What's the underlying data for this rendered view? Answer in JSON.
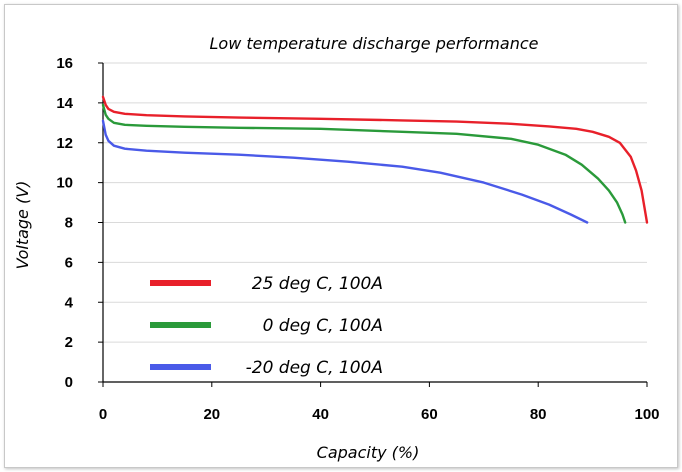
{
  "chart_data": {
    "type": "line",
    "title": "Low temperature discharge performance",
    "xlabel": "Capacity (%)",
    "ylabel": "Voltage (V)",
    "xlim": [
      0,
      100
    ],
    "ylim": [
      0,
      16
    ],
    "xticks": [
      0,
      20,
      40,
      60,
      80,
      100
    ],
    "yticks": [
      0,
      2,
      4,
      6,
      8,
      10,
      12,
      14,
      16
    ],
    "grid": "horizontal",
    "legend": "bottom-left",
    "series": [
      {
        "name": "25 deg C, 100A",
        "color": "#e8202a",
        "x": [
          0,
          0.5,
          1,
          2,
          4,
          8,
          15,
          25,
          40,
          55,
          65,
          75,
          82,
          87,
          90,
          93,
          95,
          97,
          98,
          99,
          99.5,
          100
        ],
        "y": [
          14.3,
          13.9,
          13.7,
          13.55,
          13.45,
          13.38,
          13.32,
          13.26,
          13.2,
          13.12,
          13.06,
          12.95,
          12.82,
          12.7,
          12.55,
          12.3,
          12.0,
          11.3,
          10.6,
          9.6,
          8.8,
          8.0
        ]
      },
      {
        "name": "0 deg C, 100A",
        "color": "#2a9a3a",
        "x": [
          0,
          0.5,
          1,
          2,
          4,
          8,
          15,
          25,
          40,
          55,
          65,
          75,
          80,
          85,
          88,
          91,
          93,
          94.5,
          95.5,
          96
        ],
        "y": [
          13.9,
          13.4,
          13.2,
          13.0,
          12.9,
          12.85,
          12.8,
          12.75,
          12.7,
          12.55,
          12.45,
          12.2,
          11.9,
          11.4,
          10.9,
          10.2,
          9.6,
          9.0,
          8.4,
          8.0
        ]
      },
      {
        "name": "-20 deg C, 100A",
        "color": "#4a5ae8",
        "x": [
          0,
          0.5,
          1,
          2,
          4,
          8,
          15,
          25,
          35,
          45,
          55,
          62,
          70,
          77,
          82,
          86,
          89
        ],
        "y": [
          13.1,
          12.4,
          12.1,
          11.85,
          11.7,
          11.6,
          11.5,
          11.4,
          11.25,
          11.05,
          10.8,
          10.5,
          10.0,
          9.4,
          8.9,
          8.4,
          8.0
        ]
      }
    ]
  }
}
